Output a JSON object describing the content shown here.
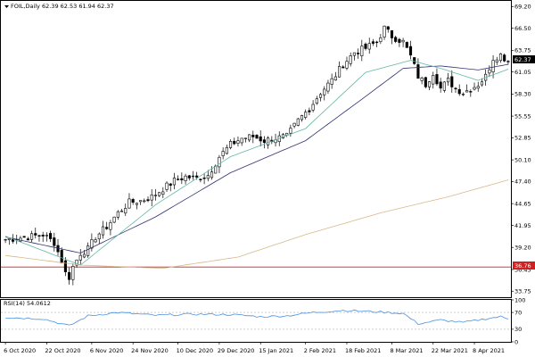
{
  "header": {
    "title": "FOIL,Daily  62.39 62.53 61.94 62.37"
  },
  "rsi_panel": {
    "label": "RSI(14) 54.0612"
  },
  "price_marker": {
    "current_label": "62.37",
    "level_label": "36.76"
  },
  "colors": {
    "background": "#ffffff",
    "candle": "#000000",
    "fast_ma": "#5fb7a5",
    "mid_ma": "#303072",
    "slow_ma": "#d8b888",
    "level_line": "#d02020",
    "rsi_line": "#4a90e0",
    "rsi_levels": "#b0b0b0"
  },
  "chart_data": [
    {
      "type": "candlestick",
      "symbol": "FOIL",
      "timeframe": "Daily",
      "last_bar": {
        "open": 62.39,
        "high": 62.53,
        "low": 61.94,
        "close": 62.37
      },
      "ylim": [
        33.0,
        69.9
      ],
      "y_ticks": [
        "69.20",
        "66.50",
        "63.75",
        "61.05",
        "58.30",
        "55.55",
        "52.85",
        "50.10",
        "47.40",
        "44.65",
        "41.95",
        "39.20",
        "36.45",
        "33.75"
      ],
      "x_ticks": [
        "6 Oct 2020",
        "22 Oct 2020",
        "6 Nov 2020",
        "24 Nov 2020",
        "10 Dec 2020",
        "29 Dec 2020",
        "15 Jan 2021",
        "2 Feb 2021",
        "18 Feb 2021",
        "8 Mar 2021",
        "22 Mar 2021",
        "8 Apr 2021"
      ],
      "close_anchors": [
        [
          0,
          40.2
        ],
        [
          6,
          40.5
        ],
        [
          10,
          40.8
        ],
        [
          13,
          39.8
        ],
        [
          15,
          37.5
        ],
        [
          16,
          36.0
        ],
        [
          17,
          35.5
        ],
        [
          18,
          36.8
        ],
        [
          20,
          38.5
        ],
        [
          22,
          39.0
        ],
        [
          24,
          40.5
        ],
        [
          27,
          41.8
        ],
        [
          30,
          43.5
        ],
        [
          33,
          44.8
        ],
        [
          36,
          45.0
        ],
        [
          39,
          45.5
        ],
        [
          42,
          46.5
        ],
        [
          45,
          47.5
        ],
        [
          48,
          48.0
        ],
        [
          51,
          47.8
        ],
        [
          54,
          48.2
        ],
        [
          57,
          50.5
        ],
        [
          60,
          52.0
        ],
        [
          63,
          52.8
        ],
        [
          66,
          53.0
        ],
        [
          69,
          52.5
        ],
        [
          72,
          52.8
        ],
        [
          75,
          53.0
        ],
        [
          78,
          55.0
        ],
        [
          81,
          56.5
        ],
        [
          84,
          58.5
        ],
        [
          87,
          60.0
        ],
        [
          90,
          62.0
        ],
        [
          93,
          63.5
        ],
        [
          96,
          64.0
        ],
        [
          99,
          64.8
        ],
        [
          101,
          66.5
        ],
        [
          103,
          65.5
        ],
        [
          106,
          64.8
        ],
        [
          108,
          63.0
        ],
        [
          110,
          60.5
        ],
        [
          112,
          59.5
        ],
        [
          114,
          61.0
        ],
        [
          116,
          59.0
        ],
        [
          118,
          60.0
        ],
        [
          120,
          59.0
        ],
        [
          122,
          58.5
        ],
        [
          124,
          59.0
        ],
        [
          126,
          59.5
        ],
        [
          128,
          60.5
        ],
        [
          130,
          62.8
        ],
        [
          132,
          63.2
        ],
        [
          134,
          62.37
        ]
      ],
      "fast_ma": [
        [
          0,
          40.6
        ],
        [
          20,
          37.0
        ],
        [
          40,
          44.5
        ],
        [
          60,
          50.5
        ],
        [
          80,
          54.0
        ],
        [
          96,
          61.0
        ],
        [
          108,
          62.5
        ],
        [
          116,
          61.5
        ],
        [
          126,
          60.0
        ],
        [
          134,
          61.4
        ]
      ],
      "mid_ma": [
        [
          0,
          40.5
        ],
        [
          20,
          38.5
        ],
        [
          40,
          43.0
        ],
        [
          60,
          48.5
        ],
        [
          80,
          52.5
        ],
        [
          96,
          58.0
        ],
        [
          106,
          61.5
        ],
        [
          116,
          61.8
        ],
        [
          126,
          61.3
        ],
        [
          134,
          62.0
        ]
      ],
      "slow_ma": [
        [
          0,
          38.2
        ],
        [
          20,
          37.0
        ],
        [
          42,
          36.6
        ],
        [
          62,
          38.0
        ],
        [
          80,
          40.8
        ],
        [
          100,
          43.5
        ],
        [
          118,
          45.5
        ],
        [
          134,
          47.6
        ]
      ],
      "level_line": 36.76
    },
    {
      "type": "line",
      "name": "RSI(14)",
      "last_value": 54.0612,
      "ylim": [
        0,
        100
      ],
      "y_ticks": [
        "100",
        "70",
        "30",
        "0"
      ],
      "levels": [
        70,
        30
      ],
      "anchors": [
        [
          0,
          58
        ],
        [
          10,
          55
        ],
        [
          17,
          38
        ],
        [
          22,
          62
        ],
        [
          30,
          70
        ],
        [
          40,
          63
        ],
        [
          50,
          66
        ],
        [
          60,
          65
        ],
        [
          68,
          60
        ],
        [
          75,
          62
        ],
        [
          82,
          70
        ],
        [
          90,
          75
        ],
        [
          98,
          72
        ],
        [
          106,
          68
        ],
        [
          110,
          43
        ],
        [
          116,
          52
        ],
        [
          122,
          46
        ],
        [
          128,
          55
        ],
        [
          132,
          60
        ],
        [
          134,
          54
        ]
      ]
    }
  ]
}
